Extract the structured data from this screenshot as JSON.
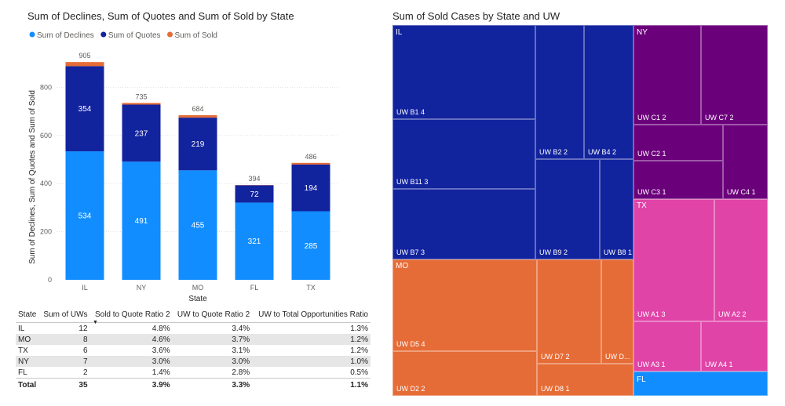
{
  "chart_data": [
    {
      "type": "bar",
      "stacked": true,
      "title": "Sum of Declines, Sum of Quotes and Sum of Sold by State",
      "xlabel": "State",
      "ylabel": "Sum of Declines, Sum of Quotes and Sum of Sold",
      "categories": [
        "IL",
        "NY",
        "MO",
        "FL",
        "TX"
      ],
      "series": [
        {
          "name": "Sum of Declines",
          "values": [
            534,
            491,
            455,
            321,
            285
          ],
          "color": "#118DFF"
        },
        {
          "name": "Sum of Quotes",
          "values": [
            354,
            237,
            219,
            72,
            194
          ],
          "color": "#12239E"
        },
        {
          "name": "Sum of Sold",
          "values": [
            17,
            7,
            10,
            1,
            7
          ],
          "color": "#E66C37"
        }
      ],
      "totals": [
        905,
        735,
        684,
        394,
        486
      ],
      "yticks": [
        0,
        200,
        400,
        600,
        800
      ],
      "ylim": [
        0,
        1000
      ],
      "grid": true,
      "legend_position": "top-left"
    },
    {
      "type": "treemap",
      "title": "Sum of Sold Cases by State and UW",
      "groups": [
        {
          "name": "IL",
          "color": "#12239E",
          "items": [
            {
              "label": "UW B1 4"
            },
            {
              "label": "UW B11 3"
            },
            {
              "label": "UW B7 3"
            },
            {
              "label": "UW B2 2"
            },
            {
              "label": "UW B4 2"
            },
            {
              "label": "UW B9 2"
            },
            {
              "label": "UW B8 1"
            }
          ]
        },
        {
          "name": "NY",
          "color": "#6B007B",
          "items": [
            {
              "label": "UW C1 2"
            },
            {
              "label": "UW C7 2"
            },
            {
              "label": "UW C2 1"
            },
            {
              "label": "UW C3 1"
            },
            {
              "label": "UW C4 1"
            }
          ]
        },
        {
          "name": "TX",
          "color": "#E044A7",
          "items": [
            {
              "label": "UW A1 3"
            },
            {
              "label": "UW A2 2"
            },
            {
              "label": "UW A3 1"
            },
            {
              "label": "UW A4 1"
            }
          ]
        },
        {
          "name": "MO",
          "color": "#E66C37",
          "items": [
            {
              "label": "UW D5 4"
            },
            {
              "label": "UW D2 2"
            },
            {
              "label": "UW D7 2"
            },
            {
              "label": "UW D..."
            },
            {
              "label": "UW D8 1"
            }
          ]
        },
        {
          "name": "FL",
          "color": "#118DFF",
          "items": []
        }
      ]
    }
  ],
  "table": {
    "headers": [
      "State",
      "Sum of UWs",
      "Sold to Quote Ratio 2",
      "UW to Quote Ratio 2",
      "UW to Total Opportunities Ratio"
    ],
    "sort_icon": "sort-descending-icon",
    "rows": [
      {
        "state": "IL",
        "uws": "12",
        "sold_quote": "4.8%",
        "uw_quote": "3.4%",
        "uw_total": "1.3%"
      },
      {
        "state": "MO",
        "uws": "8",
        "sold_quote": "4.6%",
        "uw_quote": "3.7%",
        "uw_total": "1.2%"
      },
      {
        "state": "TX",
        "uws": "6",
        "sold_quote": "3.6%",
        "uw_quote": "3.1%",
        "uw_total": "1.2%"
      },
      {
        "state": "NY",
        "uws": "7",
        "sold_quote": "3.0%",
        "uw_quote": "3.0%",
        "uw_total": "1.0%"
      },
      {
        "state": "FL",
        "uws": "2",
        "sold_quote": "1.4%",
        "uw_quote": "2.8%",
        "uw_total": "0.5%"
      }
    ],
    "total": {
      "state": "Total",
      "uws": "35",
      "sold_quote": "3.9%",
      "uw_quote": "3.3%",
      "uw_total": "1.1%"
    }
  }
}
